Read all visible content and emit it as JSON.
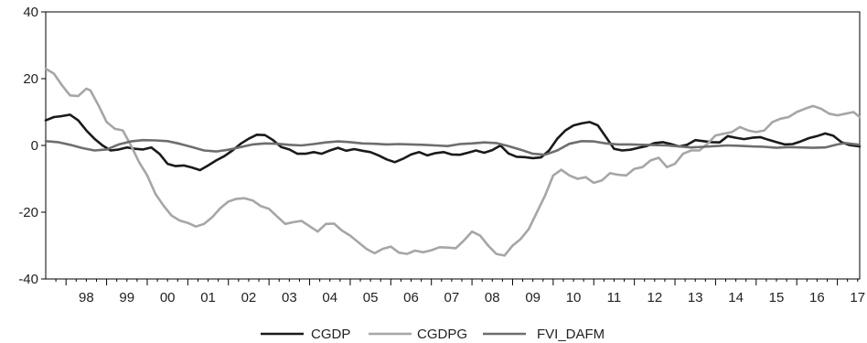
{
  "chart_data": {
    "type": "line",
    "title": "",
    "xlabel": "",
    "ylabel": "",
    "xlim": [
      1997.5,
      2017.55
    ],
    "ylim": [
      -40,
      40
    ],
    "yticks": [
      -40,
      -20,
      0,
      20,
      40
    ],
    "ytick_labels": [
      "-40",
      "-20",
      "0",
      "20",
      "40"
    ],
    "xtick_labels": [
      "98",
      "99",
      "00",
      "01",
      "02",
      "03",
      "04",
      "05",
      "06",
      "07",
      "08",
      "09",
      "10",
      "11",
      "12",
      "13",
      "14",
      "15",
      "16",
      "17"
    ],
    "grid": false,
    "legend_position": "bottom-center",
    "series": [
      {
        "name": "CGDP",
        "color": "#1a1a1a",
        "points": [
          [
            1997.5,
            7.5
          ],
          [
            1997.7,
            8.5
          ],
          [
            1997.9,
            8.8
          ],
          [
            1998.1,
            9.2
          ],
          [
            1998.3,
            7.5
          ],
          [
            1998.5,
            4.5
          ],
          [
            1998.7,
            2.0
          ],
          [
            1998.9,
            0.0
          ],
          [
            1999.1,
            -1.5
          ],
          [
            1999.3,
            -1.2
          ],
          [
            1999.5,
            -0.6
          ],
          [
            1999.7,
            -1.0
          ],
          [
            1999.9,
            -1.2
          ],
          [
            2000.1,
            -0.6
          ],
          [
            2000.3,
            -2.5
          ],
          [
            2000.5,
            -5.5
          ],
          [
            2000.7,
            -6.2
          ],
          [
            2000.9,
            -6.0
          ],
          [
            2001.1,
            -6.6
          ],
          [
            2001.3,
            -7.4
          ],
          [
            2001.5,
            -6.0
          ],
          [
            2001.7,
            -4.5
          ],
          [
            2001.9,
            -3.2
          ],
          [
            2002.1,
            -1.5
          ],
          [
            2002.3,
            0.5
          ],
          [
            2002.5,
            2.0
          ],
          [
            2002.7,
            3.2
          ],
          [
            2002.9,
            3.1
          ],
          [
            2003.1,
            1.6
          ],
          [
            2003.3,
            -0.5
          ],
          [
            2003.5,
            -1.2
          ],
          [
            2003.7,
            -2.5
          ],
          [
            2003.9,
            -2.5
          ],
          [
            2004.1,
            -2.0
          ],
          [
            2004.3,
            -2.5
          ],
          [
            2004.5,
            -1.5
          ],
          [
            2004.7,
            -0.7
          ],
          [
            2004.9,
            -1.6
          ],
          [
            2005.1,
            -1.1
          ],
          [
            2005.3,
            -1.6
          ],
          [
            2005.5,
            -2.0
          ],
          [
            2005.7,
            -3.0
          ],
          [
            2005.9,
            -4.2
          ],
          [
            2006.1,
            -5.0
          ],
          [
            2006.3,
            -4.0
          ],
          [
            2006.5,
            -2.7
          ],
          [
            2006.7,
            -2.0
          ],
          [
            2006.9,
            -3.0
          ],
          [
            2007.1,
            -2.3
          ],
          [
            2007.3,
            -2.0
          ],
          [
            2007.5,
            -2.7
          ],
          [
            2007.7,
            -2.8
          ],
          [
            2007.9,
            -2.2
          ],
          [
            2008.1,
            -1.5
          ],
          [
            2008.3,
            -2.2
          ],
          [
            2008.5,
            -1.4
          ],
          [
            2008.7,
            0.0
          ],
          [
            2008.9,
            -2.4
          ],
          [
            2009.1,
            -3.4
          ],
          [
            2009.3,
            -3.5
          ],
          [
            2009.5,
            -3.8
          ],
          [
            2009.7,
            -3.6
          ],
          [
            2009.9,
            -1.5
          ],
          [
            2010.1,
            2.0
          ],
          [
            2010.3,
            4.5
          ],
          [
            2010.5,
            6.0
          ],
          [
            2010.7,
            6.6
          ],
          [
            2010.9,
            7.0
          ],
          [
            2011.1,
            6.0
          ],
          [
            2011.3,
            2.5
          ],
          [
            2011.5,
            -1.0
          ],
          [
            2011.7,
            -1.5
          ],
          [
            2011.9,
            -1.3
          ],
          [
            2012.1,
            -0.7
          ],
          [
            2012.3,
            -0.2
          ],
          [
            2012.5,
            0.7
          ],
          [
            2012.7,
            1.0
          ],
          [
            2012.9,
            0.4
          ],
          [
            2013.1,
            -0.3
          ],
          [
            2013.3,
            0.2
          ],
          [
            2013.5,
            1.6
          ],
          [
            2013.7,
            1.3
          ],
          [
            2013.9,
            1.0
          ],
          [
            2014.1,
            0.9
          ],
          [
            2014.3,
            2.8
          ],
          [
            2014.5,
            2.3
          ],
          [
            2014.7,
            1.9
          ],
          [
            2014.9,
            2.3
          ],
          [
            2015.1,
            2.5
          ],
          [
            2015.3,
            1.7
          ],
          [
            2015.5,
            1.0
          ],
          [
            2015.7,
            0.3
          ],
          [
            2015.9,
            0.4
          ],
          [
            2016.1,
            1.2
          ],
          [
            2016.3,
            2.2
          ],
          [
            2016.5,
            2.8
          ],
          [
            2016.7,
            3.6
          ],
          [
            2016.9,
            2.9
          ],
          [
            2017.1,
            1.0
          ],
          [
            2017.3,
            0.1
          ],
          [
            2017.55,
            -0.3
          ]
        ]
      },
      {
        "name": "CGDPG",
        "color": "#a6a6a6",
        "points": [
          [
            1997.5,
            23.0
          ],
          [
            1997.7,
            21.5
          ],
          [
            1997.9,
            18.0
          ],
          [
            1998.1,
            15.0
          ],
          [
            1998.3,
            14.8
          ],
          [
            1998.5,
            17.0
          ],
          [
            1998.6,
            16.5
          ],
          [
            1998.8,
            12.0
          ],
          [
            1999.0,
            7.0
          ],
          [
            1999.2,
            5.0
          ],
          [
            1999.4,
            4.5
          ],
          [
            1999.6,
            0.0
          ],
          [
            1999.8,
            -5.0
          ],
          [
            2000.0,
            -9.0
          ],
          [
            2000.2,
            -14.5
          ],
          [
            2000.4,
            -18.0
          ],
          [
            2000.6,
            -21.0
          ],
          [
            2000.8,
            -22.5
          ],
          [
            2001.0,
            -23.2
          ],
          [
            2001.2,
            -24.3
          ],
          [
            2001.4,
            -23.5
          ],
          [
            2001.6,
            -21.5
          ],
          [
            2001.8,
            -18.8
          ],
          [
            2002.0,
            -16.8
          ],
          [
            2002.2,
            -16.0
          ],
          [
            2002.4,
            -15.8
          ],
          [
            2002.6,
            -16.5
          ],
          [
            2002.8,
            -18.2
          ],
          [
            2003.0,
            -19.0
          ],
          [
            2003.2,
            -21.3
          ],
          [
            2003.4,
            -23.5
          ],
          [
            2003.6,
            -23.0
          ],
          [
            2003.8,
            -22.6
          ],
          [
            2004.0,
            -24.2
          ],
          [
            2004.2,
            -25.8
          ],
          [
            2004.4,
            -23.5
          ],
          [
            2004.6,
            -23.4
          ],
          [
            2004.8,
            -25.5
          ],
          [
            2005.0,
            -27.0
          ],
          [
            2005.2,
            -29.0
          ],
          [
            2005.4,
            -31.0
          ],
          [
            2005.6,
            -32.3
          ],
          [
            2005.8,
            -31.0
          ],
          [
            2006.0,
            -30.3
          ],
          [
            2006.2,
            -32.1
          ],
          [
            2006.4,
            -32.5
          ],
          [
            2006.6,
            -31.5
          ],
          [
            2006.8,
            -32.0
          ],
          [
            2007.0,
            -31.4
          ],
          [
            2007.2,
            -30.5
          ],
          [
            2007.4,
            -30.6
          ],
          [
            2007.6,
            -30.8
          ],
          [
            2007.8,
            -28.5
          ],
          [
            2008.0,
            -25.8
          ],
          [
            2008.2,
            -27.0
          ],
          [
            2008.4,
            -30.0
          ],
          [
            2008.6,
            -32.5
          ],
          [
            2008.8,
            -33.0
          ],
          [
            2009.0,
            -30.0
          ],
          [
            2009.2,
            -28.0
          ],
          [
            2009.4,
            -25.0
          ],
          [
            2009.6,
            -20.0
          ],
          [
            2009.8,
            -15.0
          ],
          [
            2010.0,
            -9.0
          ],
          [
            2010.2,
            -7.3
          ],
          [
            2010.4,
            -9.0
          ],
          [
            2010.6,
            -10.0
          ],
          [
            2010.8,
            -9.5
          ],
          [
            2011.0,
            -11.2
          ],
          [
            2011.2,
            -10.5
          ],
          [
            2011.4,
            -8.3
          ],
          [
            2011.6,
            -8.8
          ],
          [
            2011.8,
            -9.0
          ],
          [
            2012.0,
            -7.0
          ],
          [
            2012.2,
            -6.5
          ],
          [
            2012.4,
            -4.5
          ],
          [
            2012.6,
            -3.7
          ],
          [
            2012.8,
            -6.5
          ],
          [
            2013.0,
            -5.5
          ],
          [
            2013.2,
            -2.5
          ],
          [
            2013.4,
            -1.5
          ],
          [
            2013.6,
            -1.5
          ],
          [
            2013.8,
            0.5
          ],
          [
            2014.0,
            3.0
          ],
          [
            2014.2,
            3.5
          ],
          [
            2014.4,
            4.0
          ],
          [
            2014.6,
            5.5
          ],
          [
            2014.8,
            4.5
          ],
          [
            2015.0,
            4.0
          ],
          [
            2015.2,
            4.5
          ],
          [
            2015.4,
            7.0
          ],
          [
            2015.6,
            8.0
          ],
          [
            2015.8,
            8.5
          ],
          [
            2016.0,
            10.0
          ],
          [
            2016.2,
            11.0
          ],
          [
            2016.4,
            11.8
          ],
          [
            2016.6,
            11.0
          ],
          [
            2016.8,
            9.5
          ],
          [
            2017.0,
            9.0
          ],
          [
            2017.2,
            9.5
          ],
          [
            2017.4,
            10.0
          ],
          [
            2017.55,
            8.5
          ]
        ]
      },
      {
        "name": "FVI_DAFM",
        "color": "#6e6e6e",
        "points": [
          [
            1997.5,
            1.3
          ],
          [
            1997.8,
            1.0
          ],
          [
            1998.1,
            0.2
          ],
          [
            1998.4,
            -0.8
          ],
          [
            1998.7,
            -1.5
          ],
          [
            1999.0,
            -1.2
          ],
          [
            1999.3,
            0.3
          ],
          [
            1999.6,
            1.2
          ],
          [
            1999.9,
            1.6
          ],
          [
            2000.2,
            1.5
          ],
          [
            2000.5,
            1.3
          ],
          [
            2000.8,
            0.5
          ],
          [
            2001.1,
            -0.5
          ],
          [
            2001.4,
            -1.5
          ],
          [
            2001.7,
            -1.8
          ],
          [
            2002.0,
            -1.3
          ],
          [
            2002.3,
            -0.5
          ],
          [
            2002.6,
            0.3
          ],
          [
            2002.9,
            0.6
          ],
          [
            2003.2,
            0.5
          ],
          [
            2003.5,
            0.2
          ],
          [
            2003.8,
            0.0
          ],
          [
            2004.1,
            0.4
          ],
          [
            2004.4,
            0.9
          ],
          [
            2004.7,
            1.2
          ],
          [
            2005.0,
            1.0
          ],
          [
            2005.3,
            0.6
          ],
          [
            2005.6,
            0.5
          ],
          [
            2005.9,
            0.3
          ],
          [
            2006.2,
            0.4
          ],
          [
            2006.5,
            0.3
          ],
          [
            2006.8,
            0.2
          ],
          [
            2007.1,
            0.0
          ],
          [
            2007.4,
            -0.2
          ],
          [
            2007.7,
            0.4
          ],
          [
            2008.0,
            0.6
          ],
          [
            2008.3,
            0.9
          ],
          [
            2008.6,
            0.7
          ],
          [
            2008.9,
            -0.2
          ],
          [
            2009.2,
            -1.3
          ],
          [
            2009.5,
            -2.5
          ],
          [
            2009.8,
            -2.8
          ],
          [
            2010.1,
            -1.5
          ],
          [
            2010.4,
            0.5
          ],
          [
            2010.7,
            1.3
          ],
          [
            2011.0,
            1.2
          ],
          [
            2011.3,
            0.6
          ],
          [
            2011.6,
            0.3
          ],
          [
            2011.9,
            0.3
          ],
          [
            2012.2,
            0.2
          ],
          [
            2012.5,
            0.1
          ],
          [
            2012.8,
            0.0
          ],
          [
            2013.1,
            -0.3
          ],
          [
            2013.4,
            -0.6
          ],
          [
            2013.7,
            -0.4
          ],
          [
            2014.0,
            -0.2
          ],
          [
            2014.3,
            0.0
          ],
          [
            2014.6,
            -0.1
          ],
          [
            2014.9,
            -0.3
          ],
          [
            2015.2,
            -0.4
          ],
          [
            2015.5,
            -0.7
          ],
          [
            2015.8,
            -0.5
          ],
          [
            2016.1,
            -0.6
          ],
          [
            2016.4,
            -0.7
          ],
          [
            2016.7,
            -0.6
          ],
          [
            2017.0,
            0.3
          ],
          [
            2017.2,
            0.7
          ],
          [
            2017.4,
            0.4
          ],
          [
            2017.55,
            0.2
          ]
        ]
      }
    ]
  }
}
